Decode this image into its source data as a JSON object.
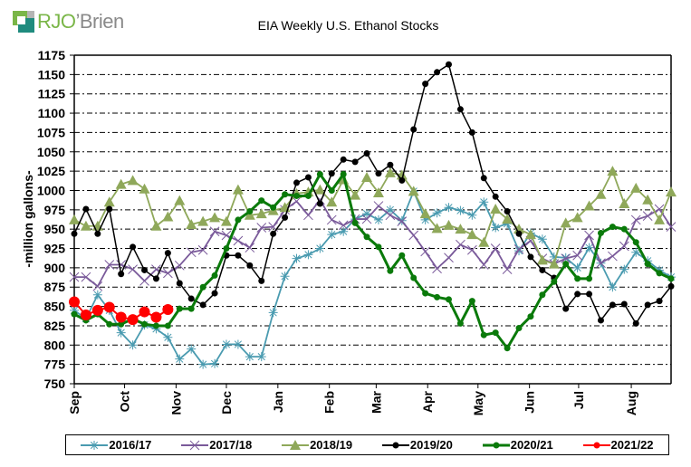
{
  "logo": {
    "part1": "RJO",
    "part2": "’Brien",
    "icon": "rjobrien-logo-icon"
  },
  "chart_data": {
    "type": "line",
    "title": "EIA Weekly U.S. Ethanol Stocks",
    "xlabel": "",
    "ylabel": "-million gallons-",
    "ylim": [
      750,
      1175
    ],
    "yticks": [
      750,
      775,
      800,
      825,
      850,
      875,
      900,
      925,
      950,
      975,
      1000,
      1025,
      1050,
      1075,
      1100,
      1125,
      1150,
      1175
    ],
    "x_unit": "week of marketing year (Sep start)",
    "xlim": [
      0,
      51
    ],
    "month_ticks": [
      {
        "label": "Sep",
        "week": 0
      },
      {
        "label": "Oct",
        "week": 4.3
      },
      {
        "label": "Nov",
        "week": 8.7
      },
      {
        "label": "Dec",
        "week": 13
      },
      {
        "label": "Jan",
        "week": 17.4
      },
      {
        "label": "Feb",
        "week": 21.8
      },
      {
        "label": "Mar",
        "week": 25.8
      },
      {
        "label": "Apr",
        "week": 30.2
      },
      {
        "label": "May",
        "week": 34.5
      },
      {
        "label": "Jun",
        "week": 38.9
      },
      {
        "label": "Jul",
        "week": 43.1
      },
      {
        "label": "Aug",
        "week": 47.6
      }
    ],
    "grid": true,
    "legend_position": "bottom",
    "series": [
      {
        "name": "2016/17",
        "color": "#4a9bb0",
        "marker": "asterisk",
        "values": [
          845,
          834,
          865,
          845,
          816,
          800,
          826,
          821,
          810,
          782,
          795,
          775,
          776,
          801,
          801,
          785,
          785,
          842,
          889,
          912,
          917,
          925,
          943,
          947,
          963,
          970,
          962,
          975,
          961,
          999,
          962,
          971,
          978,
          974,
          968,
          985,
          952,
          957,
          922,
          945,
          937,
          914,
          913,
          900,
          926,
          906,
          875,
          898,
          920,
          909,
          897,
          888
        ]
      },
      {
        "name": "2017/18",
        "color": "#7a5a9a",
        "marker": "x",
        "values": [
          888,
          888,
          876,
          904,
          904,
          898,
          883,
          898,
          893,
          903,
          920,
          923,
          947,
          942,
          935,
          926,
          952,
          953,
          975,
          986,
          968,
          988,
          962,
          955,
          963,
          963,
          980,
          968,
          960,
          942,
          921,
          899,
          913,
          930,
          923,
          904,
          925,
          898,
          924,
          935,
          912,
          905,
          912,
          916,
          942,
          906,
          915,
          928,
          962,
          967,
          976,
          953
        ]
      },
      {
        "name": "2018/19",
        "color": "#8fa85a",
        "marker": "triangle",
        "values": [
          962,
          954,
          954,
          985,
          1008,
          1013,
          1002,
          954,
          966,
          987,
          956,
          960,
          965,
          960,
          1001,
          968,
          970,
          974,
          978,
          996,
          998,
          1001,
          985,
          1014,
          994,
          1017,
          997,
          1023,
          1020,
          999,
          970,
          951,
          955,
          950,
          943,
          933,
          976,
          963,
          950,
          943,
          910,
          905,
          958,
          965,
          980,
          995,
          1025,
          983,
          1003,
          988,
          962,
          998
        ]
      },
      {
        "name": "2019/20",
        "color": "#000000",
        "marker": "diamond",
        "values": [
          944,
          976,
          944,
          976,
          892,
          927,
          897,
          886,
          919,
          880,
          860,
          852,
          867,
          916,
          916,
          903,
          883,
          944,
          965,
          1010,
          1017,
          983,
          1022,
          1040,
          1037,
          1048,
          1022,
          1033,
          1013,
          1079,
          1138,
          1153,
          1163,
          1105,
          1075,
          1016,
          992,
          973,
          944,
          914,
          897,
          887,
          847,
          866,
          866,
          832,
          852,
          853,
          828,
          852,
          857,
          876
        ]
      },
      {
        "name": "2020/21",
        "color": "#0a7a0a",
        "marker": "circle",
        "values": [
          840,
          832,
          840,
          827,
          827,
          834,
          827,
          825,
          825,
          847,
          847,
          875,
          890,
          925,
          962,
          973,
          987,
          978,
          995,
          993,
          993,
          1021,
          1000,
          1021,
          958,
          940,
          927,
          896,
          916,
          887,
          867,
          862,
          859,
          828,
          857,
          813,
          816,
          796,
          822,
          837,
          865,
          882,
          905,
          886,
          886,
          945,
          953,
          950,
          933,
          905,
          893,
          886
        ]
      },
      {
        "name": "2021/22",
        "color": "#ff0000",
        "marker": "big-circle",
        "values": [
          856,
          839,
          845,
          849,
          836,
          833,
          843,
          836,
          846
        ]
      }
    ]
  }
}
